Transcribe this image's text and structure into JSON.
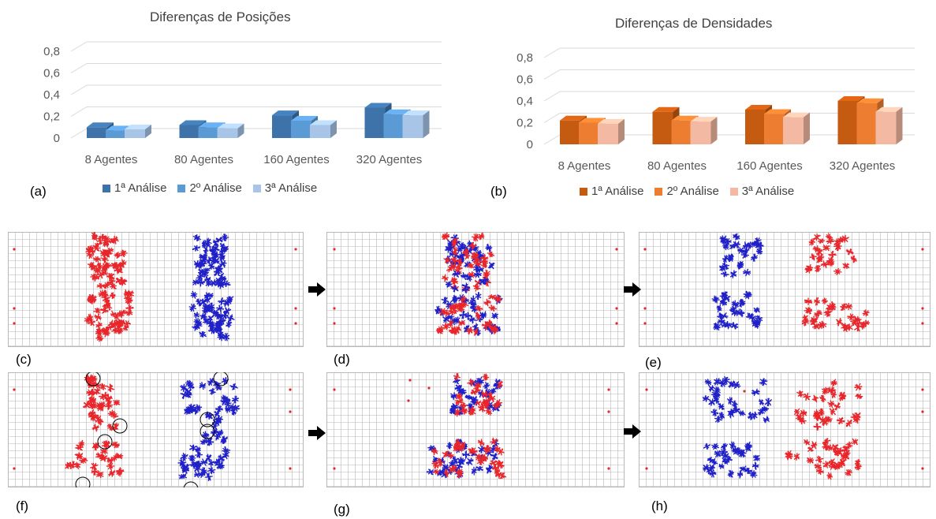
{
  "chart_data": [
    {
      "type": "bar",
      "title": "Diferenças de Posições",
      "categories": [
        "8 Agentes",
        "80 Agentes",
        "160 Agentes",
        "320 Agentes"
      ],
      "series": [
        {
          "name": "1ª Análise",
          "values": [
            0.1,
            0.12,
            0.21,
            0.28
          ],
          "color": "#3d73a8"
        },
        {
          "name": "2º Análise",
          "values": [
            0.07,
            0.1,
            0.16,
            0.22
          ],
          "color": "#5b9bd5"
        },
        {
          "name": "3ª Análise",
          "values": [
            0.08,
            0.09,
            0.12,
            0.21
          ],
          "color": "#a8c4e6"
        }
      ],
      "yticks": [
        "0",
        "0,2",
        "0,4",
        "0,6",
        "0,8"
      ],
      "ylim": [
        0,
        0.8
      ],
      "grid": true,
      "legend": "bottom",
      "panel_label": "(a)"
    },
    {
      "type": "bar",
      "title": "Diferenças de Densidades",
      "categories": [
        "8 Agentes",
        "80 Agentes",
        "160 Agentes",
        "320 Agentes"
      ],
      "series": [
        {
          "name": "1ª Análise",
          "values": [
            0.22,
            0.3,
            0.32,
            0.4
          ],
          "color": "#c55a11"
        },
        {
          "name": "2º Análise",
          "values": [
            0.2,
            0.22,
            0.28,
            0.38
          ],
          "color": "#ed7d31"
        },
        {
          "name": "3ª Análise",
          "values": [
            0.19,
            0.21,
            0.25,
            0.3
          ],
          "color": "#f4b9a3"
        }
      ],
      "yticks": [
        "0",
        "0,2",
        "0,4",
        "0,6",
        "0,8"
      ],
      "ylim": [
        0,
        0.8
      ],
      "grid": true,
      "legend": "bottom",
      "panel_label": "(b)"
    }
  ],
  "simulations": {
    "labels": [
      "(c)",
      "(d)",
      "(e)",
      "(f)",
      "(g)",
      "(h)"
    ],
    "colors": {
      "red_agents": "#e8262b",
      "blue_agents": "#2020c8",
      "grid": "#b8b8b8",
      "markers": "#e8262b"
    }
  }
}
